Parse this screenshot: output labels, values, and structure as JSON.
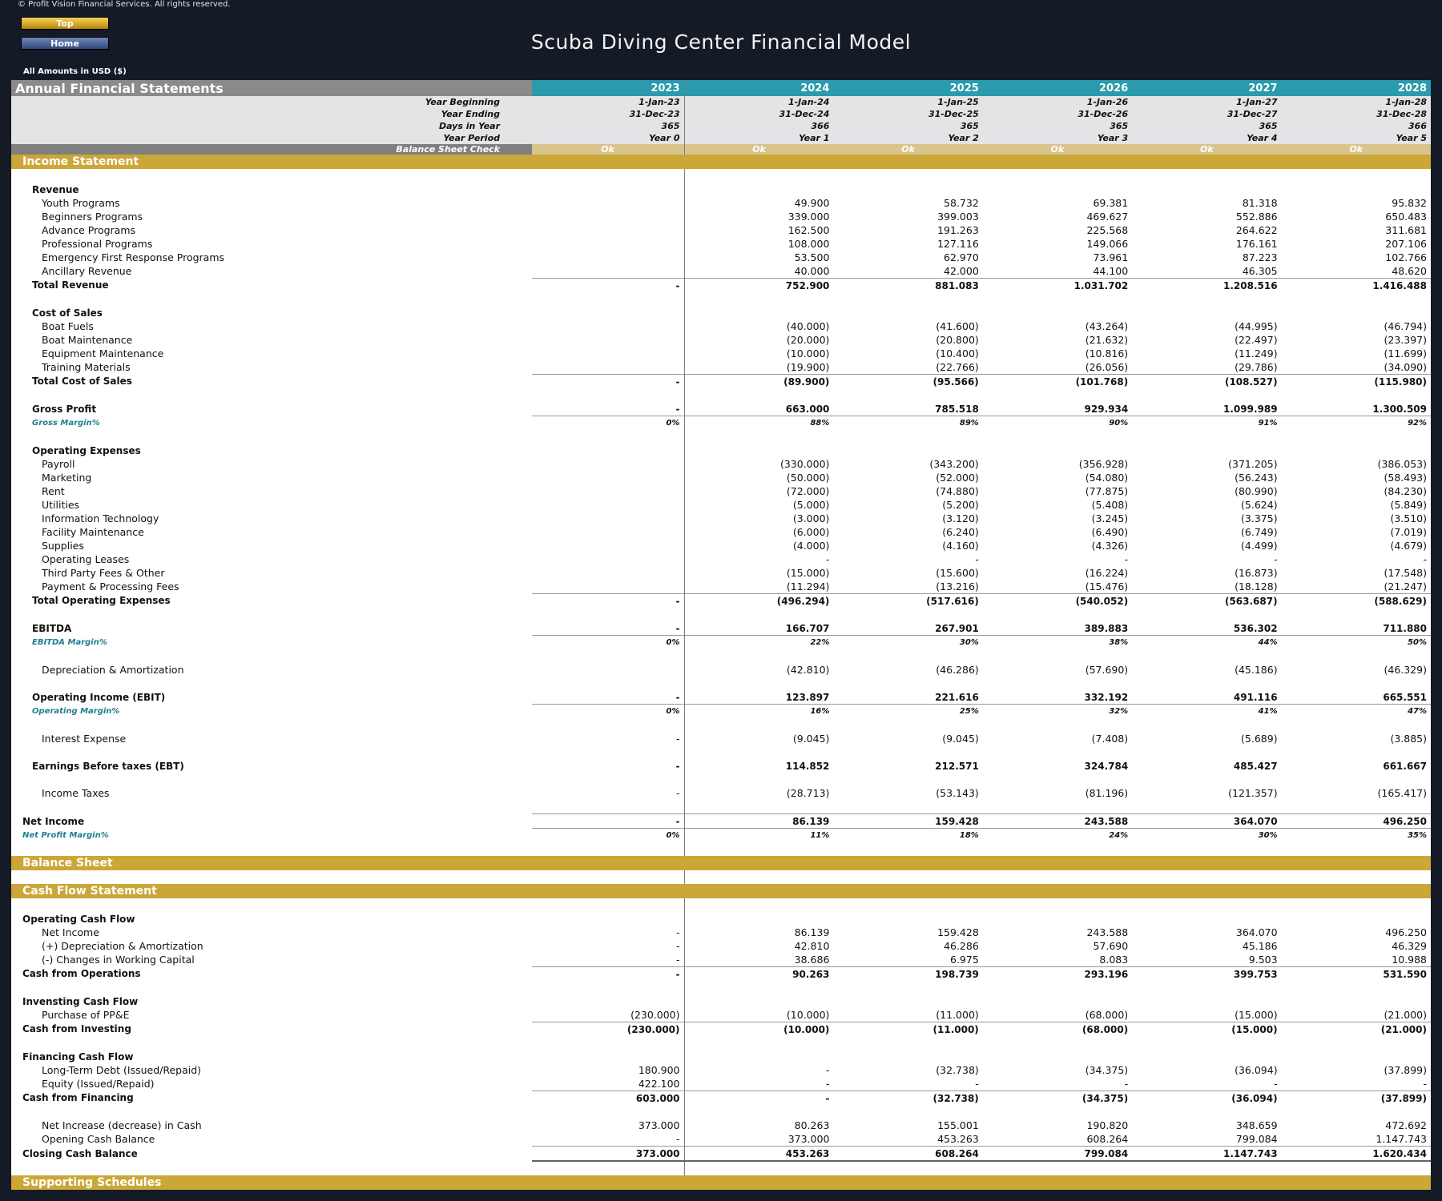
{
  "header": {
    "copyright": "© Profit Vision Financial Services. All rights reserved.",
    "top_btn": "Top",
    "home_btn": "Home",
    "title": "Scuba Diving Center Financial Model",
    "amounts": "All Amounts in  USD ($)"
  },
  "table_header": {
    "title": "Annual Financial Statements",
    "years": [
      "2023",
      "2024",
      "2025",
      "2026",
      "2027",
      "2028"
    ],
    "year_beginning_label": "Year Beginning",
    "year_beginning": [
      "1-Jan-23",
      "1-Jan-24",
      "1-Jan-25",
      "1-Jan-26",
      "1-Jan-27",
      "1-Jan-28"
    ],
    "year_ending_label": "Year Ending",
    "year_ending": [
      "31-Dec-23",
      "31-Dec-24",
      "31-Dec-25",
      "31-Dec-26",
      "31-Dec-27",
      "31-Dec-28"
    ],
    "days_label": "Days in Year",
    "days": [
      "365",
      "366",
      "365",
      "365",
      "365",
      "366"
    ],
    "period_label": "Year Period",
    "period": [
      "Year 0",
      "Year 1",
      "Year 2",
      "Year 3",
      "Year 4",
      "Year 5"
    ],
    "check_label": "Balance Sheet Check",
    "check": [
      "Ok",
      "Ok",
      "Ok",
      "Ok",
      "Ok",
      "Ok"
    ]
  },
  "rows": [
    {
      "t": "section",
      "label": "Income Statement"
    },
    {
      "t": "gap"
    },
    {
      "t": "group",
      "label": "Revenue"
    },
    {
      "t": "item",
      "label": "Youth Programs",
      "v": [
        "",
        "49.900",
        "58.732",
        "69.381",
        "81.318",
        "95.832"
      ]
    },
    {
      "t": "item",
      "label": "Beginners Programs",
      "v": [
        "",
        "339.000",
        "399.003",
        "469.627",
        "552.886",
        "650.483"
      ]
    },
    {
      "t": "item",
      "label": "Advance Programs",
      "v": [
        "",
        "162.500",
        "191.263",
        "225.568",
        "264.622",
        "311.681"
      ]
    },
    {
      "t": "item",
      "label": "Professional Programs",
      "v": [
        "",
        "108.000",
        "127.116",
        "149.066",
        "176.161",
        "207.106"
      ]
    },
    {
      "t": "item",
      "label": "Emergency First Response Programs",
      "v": [
        "",
        "53.500",
        "62.970",
        "73.961",
        "87.223",
        "102.766"
      ]
    },
    {
      "t": "item",
      "label": "Ancillary Revenue",
      "v": [
        "",
        "40.000",
        "42.000",
        "44.100",
        "46.305",
        "48.620"
      ]
    },
    {
      "t": "total",
      "label": "Total Revenue",
      "v": [
        "-",
        "752.900",
        "881.083",
        "1.031.702",
        "1.208.516",
        "1.416.488"
      ]
    },
    {
      "t": "gap"
    },
    {
      "t": "group",
      "label": "Cost of Sales"
    },
    {
      "t": "item",
      "label": "Boat Fuels",
      "v": [
        "",
        "(40.000)",
        "(41.600)",
        "(43.264)",
        "(44.995)",
        "(46.794)"
      ]
    },
    {
      "t": "item",
      "label": "Boat Maintenance",
      "v": [
        "",
        "(20.000)",
        "(20.800)",
        "(21.632)",
        "(22.497)",
        "(23.397)"
      ]
    },
    {
      "t": "item",
      "label": "Equipment Maintenance",
      "v": [
        "",
        "(10.000)",
        "(10.400)",
        "(10.816)",
        "(11.249)",
        "(11.699)"
      ]
    },
    {
      "t": "item",
      "label": "Training Materials",
      "v": [
        "",
        "(19.900)",
        "(22.766)",
        "(26.056)",
        "(29.786)",
        "(34.090)"
      ]
    },
    {
      "t": "total",
      "label": "Total Cost of Sales",
      "v": [
        "-",
        "(89.900)",
        "(95.566)",
        "(101.768)",
        "(108.527)",
        "(115.980)"
      ]
    },
    {
      "t": "gap"
    },
    {
      "t": "bold",
      "label": "Gross Profit",
      "v": [
        "-",
        "663.000",
        "785.518",
        "929.934",
        "1.099.989",
        "1.300.509"
      ]
    },
    {
      "t": "margin",
      "label": "Gross Margin%",
      "v": [
        "0%",
        "88%",
        "89%",
        "90%",
        "91%",
        "92%"
      ]
    },
    {
      "t": "gap"
    },
    {
      "t": "group",
      "label": "Operating Expenses"
    },
    {
      "t": "item",
      "label": "Payroll",
      "v": [
        "",
        "(330.000)",
        "(343.200)",
        "(356.928)",
        "(371.205)",
        "(386.053)"
      ]
    },
    {
      "t": "item",
      "label": "Marketing",
      "v": [
        "",
        "(50.000)",
        "(52.000)",
        "(54.080)",
        "(56.243)",
        "(58.493)"
      ]
    },
    {
      "t": "item",
      "label": "Rent",
      "v": [
        "",
        "(72.000)",
        "(74.880)",
        "(77.875)",
        "(80.990)",
        "(84.230)"
      ]
    },
    {
      "t": "item",
      "label": "Utilities",
      "v": [
        "",
        "(5.000)",
        "(5.200)",
        "(5.408)",
        "(5.624)",
        "(5.849)"
      ]
    },
    {
      "t": "item",
      "label": "Information Technology",
      "v": [
        "",
        "(3.000)",
        "(3.120)",
        "(3.245)",
        "(3.375)",
        "(3.510)"
      ]
    },
    {
      "t": "item",
      "label": "Facility Maintenance",
      "v": [
        "",
        "(6.000)",
        "(6.240)",
        "(6.490)",
        "(6.749)",
        "(7.019)"
      ]
    },
    {
      "t": "item",
      "label": "Supplies",
      "v": [
        "",
        "(4.000)",
        "(4.160)",
        "(4.326)",
        "(4.499)",
        "(4.679)"
      ]
    },
    {
      "t": "item",
      "label": "Operating Leases",
      "v": [
        "",
        "-",
        "-",
        "-",
        "-",
        "-"
      ]
    },
    {
      "t": "item",
      "label": "Third Party Fees & Other",
      "v": [
        "",
        "(15.000)",
        "(15.600)",
        "(16.224)",
        "(16.873)",
        "(17.548)"
      ]
    },
    {
      "t": "item",
      "label": "Payment & Processing Fees",
      "v": [
        "",
        "(11.294)",
        "(13.216)",
        "(15.476)",
        "(18.128)",
        "(21.247)"
      ]
    },
    {
      "t": "total",
      "label": "Total Operating Expenses",
      "v": [
        "-",
        "(496.294)",
        "(517.616)",
        "(540.052)",
        "(563.687)",
        "(588.629)"
      ]
    },
    {
      "t": "gap"
    },
    {
      "t": "bold",
      "label": "EBITDA",
      "v": [
        "-",
        "166.707",
        "267.901",
        "389.883",
        "536.302",
        "711.880"
      ]
    },
    {
      "t": "margin",
      "label": "EBITDA Margin%",
      "v": [
        "0%",
        "22%",
        "30%",
        "38%",
        "44%",
        "50%"
      ]
    },
    {
      "t": "gap"
    },
    {
      "t": "item",
      "label": "Depreciation & Amortization",
      "v": [
        "",
        "(42.810)",
        "(46.286)",
        "(57.690)",
        "(45.186)",
        "(46.329)"
      ]
    },
    {
      "t": "gap"
    },
    {
      "t": "bold",
      "label": "Operating Income (EBIT)",
      "v": [
        "-",
        "123.897",
        "221.616",
        "332.192",
        "491.116",
        "665.551"
      ]
    },
    {
      "t": "margin",
      "label": "Operating Margin%",
      "v": [
        "0%",
        "16%",
        "25%",
        "32%",
        "41%",
        "47%"
      ]
    },
    {
      "t": "gap"
    },
    {
      "t": "plain",
      "label": "Interest Expense",
      "v": [
        "-",
        "(9.045)",
        "(9.045)",
        "(7.408)",
        "(5.689)",
        "(3.885)"
      ]
    },
    {
      "t": "gap"
    },
    {
      "t": "bold",
      "label": "Earnings Before taxes (EBT)",
      "v": [
        "-",
        "114.852",
        "212.571",
        "324.784",
        "485.427",
        "661.667"
      ]
    },
    {
      "t": "gap"
    },
    {
      "t": "plain",
      "label": "Income Taxes",
      "v": [
        "-",
        "(28.713)",
        "(53.143)",
        "(81.196)",
        "(121.357)",
        "(165.417)"
      ]
    },
    {
      "t": "gap"
    },
    {
      "t": "toptotal",
      "label": "Net Income",
      "v": [
        "-",
        "86.139",
        "159.428",
        "243.588",
        "364.070",
        "496.250"
      ]
    },
    {
      "t": "topmargin",
      "label": "Net Profit Margin%",
      "v": [
        "0%",
        "11%",
        "18%",
        "24%",
        "30%",
        "35%"
      ]
    },
    {
      "t": "gap"
    },
    {
      "t": "section",
      "label": "Balance Sheet"
    },
    {
      "t": "gap"
    },
    {
      "t": "section",
      "label": "Cash Flow Statement"
    },
    {
      "t": "gap"
    },
    {
      "t": "topgroup",
      "label": "Operating Cash Flow"
    },
    {
      "t": "plain",
      "label": "Net Income",
      "v": [
        "-",
        "86.139",
        "159.428",
        "243.588",
        "364.070",
        "496.250"
      ]
    },
    {
      "t": "plain",
      "label": "(+) Depreciation & Amortization",
      "v": [
        "-",
        "42.810",
        "46.286",
        "57.690",
        "45.186",
        "46.329"
      ]
    },
    {
      "t": "plain",
      "label": "(-) Changes in Working Capital",
      "v": [
        "-",
        "38.686",
        "6.975",
        "8.083",
        "9.503",
        "10.988"
      ]
    },
    {
      "t": "toptotal",
      "label": "Cash from Operations",
      "v": [
        "-",
        "90.263",
        "198.739",
        "293.196",
        "399.753",
        "531.590"
      ]
    },
    {
      "t": "gap"
    },
    {
      "t": "topgroup",
      "label": "Invensting Cash Flow"
    },
    {
      "t": "plain",
      "label": "Purchase of PP&E",
      "v": [
        "(230.000)",
        "(10.000)",
        "(11.000)",
        "(68.000)",
        "(15.000)",
        "(21.000)"
      ]
    },
    {
      "t": "toptotal",
      "label": "Cash from Investing",
      "v": [
        "(230.000)",
        "(10.000)",
        "(11.000)",
        "(68.000)",
        "(15.000)",
        "(21.000)"
      ]
    },
    {
      "t": "gap"
    },
    {
      "t": "topgroup",
      "label": "Financing Cash Flow"
    },
    {
      "t": "plain",
      "label": "Long-Term Debt (Issued/Repaid)",
      "v": [
        "180.900",
        "-",
        "(32.738)",
        "(34.375)",
        "(36.094)",
        "(37.899)"
      ]
    },
    {
      "t": "plain",
      "label": "Equity (Issued/Repaid)",
      "v": [
        "422.100",
        "-",
        "-",
        "-",
        "-",
        "-"
      ]
    },
    {
      "t": "toptotal",
      "label": "Cash from Financing",
      "v": [
        "603.000",
        "-",
        "(32.738)",
        "(34.375)",
        "(36.094)",
        "(37.899)"
      ]
    },
    {
      "t": "gap"
    },
    {
      "t": "plain",
      "label": "Net Increase (decrease) in Cash",
      "v": [
        "373.000",
        "80.263",
        "155.001",
        "190.820",
        "348.659",
        "472.692"
      ]
    },
    {
      "t": "plain",
      "label": "Opening Cash Balance",
      "v": [
        "-",
        "373.000",
        "453.263",
        "608.264",
        "799.084",
        "1.147.743"
      ]
    },
    {
      "t": "closing",
      "label": "Closing Cash Balance",
      "v": [
        "373.000",
        "453.263",
        "608.264",
        "799.084",
        "1.147.743",
        "1.620.434"
      ]
    },
    {
      "t": "gap"
    },
    {
      "t": "section",
      "label": "Supporting Schedules"
    }
  ]
}
